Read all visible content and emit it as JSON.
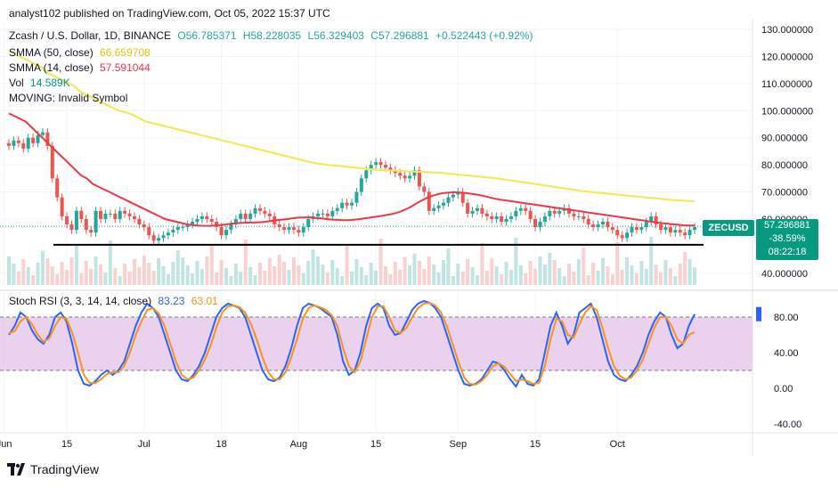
{
  "header": {
    "publish_line": "analyst102 published on TradingView.com, Oct 05, 2022 15:37 UTC"
  },
  "legend": {
    "symbol": "Zcash / U.S. Dollar, 1D, BINANCE",
    "open": "O56.785371",
    "high": "H58.228035",
    "low": "L56.329403",
    "close": "C57.296881",
    "change": "+0.522443 (+0.92%)",
    "smma50_label": "SMMA (50, close)",
    "smma50_value": "66.659708",
    "smma14_label": "SMMA (14, close)",
    "smma14_value": "57.591044",
    "vol_label": "Vol",
    "vol_value": "14.589K",
    "moving_label": "MOVING: Invalid Symbol",
    "stoch_label": "Stoch RSI (3, 3, 14, 14, close)",
    "stoch_k": "83.23",
    "stoch_d": "63.01"
  },
  "price_tag": {
    "symbol": "ZECUSD",
    "price": "57.296881",
    "change_pct": "-38.59%",
    "countdown": "08:22:18"
  },
  "footer": {
    "brand": "TradingView"
  },
  "colors": {
    "up": "#26a69a",
    "down": "#ef5350",
    "smma50": "#f5e84a",
    "smma14": "#f23645",
    "stoch_k": "#2962ff",
    "stoch_d": "#f7931a",
    "stoch_band": "#e1bee7"
  },
  "chart_data": [
    {
      "type": "candlestick",
      "title": "Zcash / U.S. Dollar, 1D, BINANCE",
      "y_axis": {
        "labels": [
          "130.000000",
          "120.000000",
          "110.000000",
          "100.000000",
          "90.000000",
          "80.000000",
          "70.000000",
          "60.000000",
          "40.000000"
        ],
        "ylim": [
          35,
          131
        ]
      },
      "x_axis": {
        "labels": [
          "Jun",
          "15",
          "Jul",
          "18",
          "Aug",
          "15",
          "Sep",
          "15",
          "Oct"
        ]
      },
      "grid": true,
      "support_level": 50.5,
      "last_price": 57.296881,
      "close_series": [
        87,
        89,
        88,
        86,
        90,
        88,
        91,
        92,
        87,
        75,
        68,
        61,
        58,
        56,
        63,
        60,
        56,
        55,
        63,
        60,
        62,
        62,
        60,
        63,
        62,
        61,
        60,
        58,
        57,
        54,
        52,
        53,
        54,
        55,
        56,
        57,
        57,
        58,
        59,
        60,
        61,
        60,
        59,
        57,
        54,
        56,
        58,
        60,
        62,
        60,
        62,
        64,
        63,
        62,
        61,
        58,
        57,
        56,
        57,
        56,
        55,
        57,
        60,
        61,
        62,
        62,
        61,
        63,
        64,
        66,
        65,
        66,
        70,
        75,
        78,
        80,
        81,
        80,
        79,
        78,
        77,
        76,
        75,
        76,
        78,
        72,
        70,
        63,
        64,
        65,
        66,
        68,
        69,
        70,
        66,
        62,
        63,
        64,
        62,
        61,
        60,
        61,
        59,
        60,
        61,
        63,
        64,
        63,
        60,
        57,
        59,
        61,
        63,
        62,
        63,
        64,
        62,
        61,
        61,
        60,
        58,
        57,
        58,
        59,
        57,
        56,
        54,
        53,
        55,
        57,
        56,
        57,
        59,
        61,
        58,
        56,
        57,
        55,
        56,
        55,
        54,
        56,
        57
      ],
      "series": [
        {
          "name": "SMMA (50, close)",
          "values": [
            122,
            121,
            120,
            119,
            118,
            117,
            116,
            114,
            113,
            112,
            111,
            110,
            109,
            107,
            106,
            105,
            104,
            103,
            102,
            101,
            100,
            99.5,
            99,
            98,
            97,
            96,
            95.5,
            95,
            94.5,
            94,
            93.5,
            93,
            92.5,
            92,
            91.5,
            91,
            90.5,
            90,
            89.5,
            89,
            88.5,
            88,
            87.5,
            87,
            86.5,
            86,
            85.5,
            85,
            84.5,
            84,
            83.5,
            83,
            82.5,
            82,
            81.5,
            81,
            80.6,
            80.3,
            80,
            79.8,
            79.6,
            79.4,
            79.2,
            79,
            78.8,
            78.6,
            78.4,
            78.2,
            78.1,
            78,
            77.9,
            77.8,
            77.7,
            77.6,
            77.5,
            77.4,
            77.3,
            77.2,
            77.1,
            77,
            76.8,
            76.6,
            76.4,
            76.2,
            76,
            75.8,
            75.6,
            75.4,
            75.2,
            75,
            74.7,
            74.4,
            74.1,
            73.8,
            73.5,
            73.2,
            72.9,
            72.6,
            72.3,
            72,
            71.7,
            71.4,
            71.1,
            70.8,
            70.5,
            70.2,
            70,
            69.8,
            69.6,
            69.4,
            69.2,
            69,
            68.8,
            68.6,
            68.4,
            68.2,
            68,
            67.8,
            67.6,
            67.4,
            67.2,
            67,
            66.9,
            66.8,
            66.7,
            66.66
          ]
        },
        {
          "name": "SMMA (14, close)",
          "values": [
            99,
            98,
            97,
            96,
            94,
            92,
            90,
            88,
            86,
            84,
            82,
            80,
            78,
            76,
            75,
            73,
            72,
            71,
            70,
            69,
            68,
            67,
            66,
            65,
            64,
            63,
            62,
            61,
            60,
            59.5,
            59,
            58.5,
            58,
            57.8,
            57.6,
            57.5,
            57.5,
            57.6,
            57.8,
            58,
            58.3,
            58.5,
            58.6,
            58.7,
            58.7,
            58.8,
            59,
            59.3,
            59.6,
            59.8,
            60,
            60.3,
            60.5,
            60.6,
            60.6,
            60.4,
            60.2,
            60,
            59.8,
            59.7,
            59.6,
            59.6,
            59.8,
            60,
            60.3,
            60.6,
            60.9,
            61.2,
            61.6,
            62,
            62.6,
            63.4,
            64.4,
            65.6,
            66.8,
            67.8,
            68.6,
            69.2,
            69.6,
            69.8,
            69.9,
            69.8,
            69.6,
            69.3,
            69,
            68.6,
            68.1,
            67.6,
            67.2,
            66.9,
            66.6,
            66.3,
            66,
            65.7,
            65.4,
            65.1,
            64.8,
            64.5,
            64.2,
            63.9,
            63.6,
            63.3,
            63,
            62.7,
            62.4,
            62.1,
            61.8,
            61.5,
            61.2,
            60.9,
            60.6,
            60.3,
            60,
            59.7,
            59.4,
            59.1,
            58.8,
            58.5,
            58.3,
            58.1,
            57.9,
            57.7,
            57.6,
            57.59
          ]
        }
      ]
    },
    {
      "type": "line",
      "title": "Stoch RSI (3, 3, 14, 14, close)",
      "y_axis": {
        "labels": [
          "80.00",
          "40.00",
          "0.00",
          "-40.00"
        ],
        "ylim": [
          -50,
          100
        ]
      },
      "bands": [
        20,
        80
      ],
      "series": [
        {
          "name": "K",
          "values": [
            60,
            70,
            85,
            80,
            65,
            55,
            50,
            60,
            80,
            85,
            75,
            50,
            20,
            5,
            3,
            8,
            15,
            20,
            15,
            20,
            30,
            50,
            70,
            85,
            95,
            90,
            80,
            60,
            40,
            20,
            10,
            8,
            15,
            25,
            40,
            60,
            80,
            90,
            95,
            93,
            90,
            80,
            60,
            40,
            20,
            10,
            8,
            12,
            25,
            45,
            70,
            90,
            95,
            93,
            90,
            85,
            80,
            60,
            30,
            15,
            20,
            40,
            70,
            90,
            95,
            90,
            70,
            60,
            62,
            75,
            88,
            95,
            98,
            96,
            90,
            80,
            60,
            40,
            20,
            5,
            3,
            5,
            10,
            20,
            30,
            28,
            20,
            10,
            2,
            15,
            5,
            3,
            10,
            40,
            70,
            85,
            70,
            50,
            60,
            85,
            90,
            95,
            80,
            55,
            30,
            15,
            10,
            8,
            15,
            25,
            40,
            60,
            75,
            85,
            80,
            60,
            45,
            50,
            70,
            83.23
          ]
        },
        {
          "name": "D",
          "values": [
            62,
            64,
            75,
            80,
            72,
            60,
            52,
            56,
            70,
            80,
            78,
            62,
            40,
            15,
            6,
            6,
            10,
            16,
            18,
            18,
            25,
            40,
            60,
            75,
            88,
            90,
            84,
            70,
            50,
            30,
            15,
            10,
            12,
            20,
            32,
            48,
            68,
            85,
            92,
            93,
            91,
            85,
            72,
            55,
            35,
            18,
            10,
            10,
            18,
            35,
            55,
            78,
            90,
            93,
            91,
            88,
            82,
            70,
            45,
            25,
            18,
            30,
            55,
            80,
            92,
            92,
            80,
            65,
            62,
            68,
            80,
            90,
            95,
            96,
            93,
            85,
            70,
            50,
            30,
            12,
            5,
            4,
            8,
            15,
            25,
            28,
            24,
            16,
            8,
            10,
            8,
            5,
            6,
            25,
            55,
            78,
            75,
            60,
            57,
            72,
            85,
            92,
            88,
            68,
            45,
            25,
            14,
            10,
            12,
            20,
            32,
            50,
            68,
            80,
            80,
            70,
            55,
            50,
            60,
            63.01
          ]
        }
      ]
    }
  ]
}
